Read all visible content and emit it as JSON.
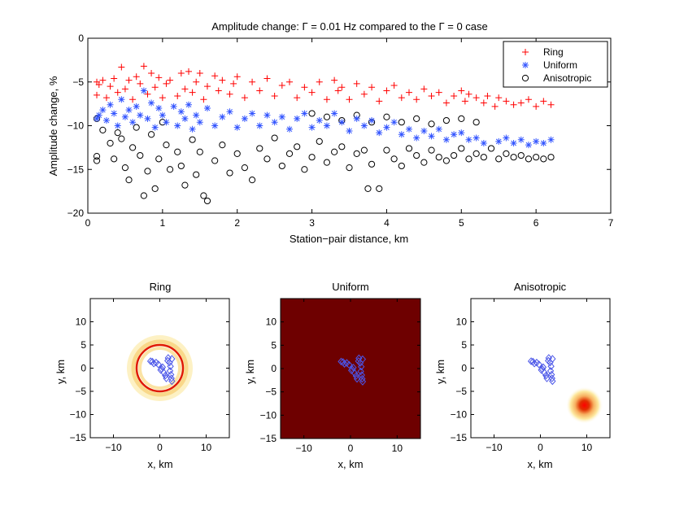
{
  "chart_data": [
    {
      "type": "scatter",
      "title": "Amplitude change: Γ = 0.01 Hz compared to the Γ = 0 case",
      "xlabel": "Station−pair distance, km",
      "ylabel": "Amplitude change, %",
      "xlim": [
        0,
        7
      ],
      "ylim": [
        -20,
        0
      ],
      "xticks": [
        "0",
        "1",
        "2",
        "3",
        "4",
        "5",
        "6",
        "7"
      ],
      "yticks": [
        "0",
        "−5",
        "−10",
        "−15",
        "−20"
      ],
      "legend": {
        "placement": "top-right",
        "entries": [
          "Ring",
          "Uniform",
          "Anisotropic"
        ]
      },
      "series": [
        {
          "name": "Ring",
          "marker": "+",
          "color": "#ff0000",
          "points": [
            [
              0.12,
              -5.0
            ],
            [
              0.12,
              -6.5
            ],
            [
              0.15,
              -5.3
            ],
            [
              0.2,
              -4.8
            ],
            [
              0.25,
              -6.8
            ],
            [
              0.3,
              -5.5
            ],
            [
              0.35,
              -4.6
            ],
            [
              0.4,
              -6.2
            ],
            [
              0.45,
              -3.3
            ],
            [
              0.5,
              -5.8
            ],
            [
              0.55,
              -4.8
            ],
            [
              0.6,
              -7.0
            ],
            [
              0.65,
              -4.4
            ],
            [
              0.7,
              -5.2
            ],
            [
              0.75,
              -3.2
            ],
            [
              0.8,
              -6.4
            ],
            [
              0.85,
              -4.0
            ],
            [
              0.9,
              -5.6
            ],
            [
              0.95,
              -4.5
            ],
            [
              1.0,
              -6.8
            ],
            [
              1.05,
              -5.2
            ],
            [
              1.1,
              -4.8
            ],
            [
              1.2,
              -6.6
            ],
            [
              1.25,
              -4.0
            ],
            [
              1.3,
              -5.8
            ],
            [
              1.35,
              -3.8
            ],
            [
              1.4,
              -6.2
            ],
            [
              1.45,
              -5.0
            ],
            [
              1.5,
              -4.0
            ],
            [
              1.55,
              -7.0
            ],
            [
              1.6,
              -5.5
            ],
            [
              1.7,
              -4.3
            ],
            [
              1.75,
              -6.0
            ],
            [
              1.8,
              -4.8
            ],
            [
              1.9,
              -6.4
            ],
            [
              1.95,
              -5.2
            ],
            [
              2.0,
              -4.4
            ],
            [
              2.1,
              -6.8
            ],
            [
              2.2,
              -5.0
            ],
            [
              2.3,
              -6.0
            ],
            [
              2.4,
              -4.6
            ],
            [
              2.5,
              -6.6
            ],
            [
              2.6,
              -5.4
            ],
            [
              2.7,
              -5.0
            ],
            [
              2.8,
              -6.8
            ],
            [
              2.9,
              -5.6
            ],
            [
              3.0,
              -6.2
            ],
            [
              3.1,
              -5.0
            ],
            [
              3.2,
              -7.0
            ],
            [
              3.3,
              -4.8
            ],
            [
              3.35,
              -6.0
            ],
            [
              3.4,
              -5.6
            ],
            [
              3.5,
              -7.0
            ],
            [
              3.6,
              -5.2
            ],
            [
              3.7,
              -6.4
            ],
            [
              3.8,
              -5.6
            ],
            [
              3.9,
              -7.2
            ],
            [
              4.0,
              -6.0
            ],
            [
              4.1,
              -5.4
            ],
            [
              4.2,
              -6.8
            ],
            [
              4.3,
              -6.2
            ],
            [
              4.4,
              -7.0
            ],
            [
              4.5,
              -5.8
            ],
            [
              4.6,
              -6.6
            ],
            [
              4.7,
              -6.2
            ],
            [
              4.8,
              -7.4
            ],
            [
              4.9,
              -6.6
            ],
            [
              5.0,
              -6.0
            ],
            [
              5.05,
              -7.2
            ],
            [
              5.1,
              -6.4
            ],
            [
              5.2,
              -6.8
            ],
            [
              5.3,
              -7.4
            ],
            [
              5.35,
              -6.6
            ],
            [
              5.45,
              -7.8
            ],
            [
              5.5,
              -6.8
            ],
            [
              5.6,
              -7.2
            ],
            [
              5.7,
              -7.6
            ],
            [
              5.8,
              -7.4
            ],
            [
              5.9,
              -7.0
            ],
            [
              6.0,
              -7.8
            ],
            [
              6.1,
              -7.2
            ],
            [
              6.2,
              -7.6
            ]
          ]
        },
        {
          "name": "Uniform",
          "marker": "*",
          "color": "#3355ff",
          "points": [
            [
              0.12,
              -9.2
            ],
            [
              0.15,
              -8.8
            ],
            [
              0.2,
              -8.2
            ],
            [
              0.25,
              -9.4
            ],
            [
              0.3,
              -7.6
            ],
            [
              0.35,
              -8.6
            ],
            [
              0.4,
              -10.0
            ],
            [
              0.45,
              -7.0
            ],
            [
              0.5,
              -9.0
            ],
            [
              0.55,
              -8.2
            ],
            [
              0.6,
              -9.6
            ],
            [
              0.65,
              -7.8
            ],
            [
              0.7,
              -8.8
            ],
            [
              0.75,
              -6.0
            ],
            [
              0.8,
              -9.2
            ],
            [
              0.85,
              -7.4
            ],
            [
              0.9,
              -10.2
            ],
            [
              0.95,
              -8.0
            ],
            [
              1.0,
              -8.8
            ],
            [
              1.05,
              -9.6
            ],
            [
              1.15,
              -7.8
            ],
            [
              1.2,
              -10.0
            ],
            [
              1.25,
              -8.4
            ],
            [
              1.3,
              -9.2
            ],
            [
              1.35,
              -7.6
            ],
            [
              1.4,
              -10.4
            ],
            [
              1.45,
              -8.8
            ],
            [
              1.5,
              -9.6
            ],
            [
              1.6,
              -8.0
            ],
            [
              1.7,
              -10.0
            ],
            [
              1.8,
              -9.0
            ],
            [
              1.9,
              -8.4
            ],
            [
              2.0,
              -10.2
            ],
            [
              2.1,
              -9.2
            ],
            [
              2.2,
              -8.6
            ],
            [
              2.3,
              -10.0
            ],
            [
              2.4,
              -8.8
            ],
            [
              2.5,
              -9.6
            ],
            [
              2.6,
              -9.0
            ],
            [
              2.7,
              -10.4
            ],
            [
              2.8,
              -9.2
            ],
            [
              2.9,
              -8.6
            ],
            [
              3.0,
              -10.2
            ],
            [
              3.1,
              -9.4
            ],
            [
              3.2,
              -10.0
            ],
            [
              3.3,
              -8.6
            ],
            [
              3.4,
              -9.6
            ],
            [
              3.5,
              -10.6
            ],
            [
              3.6,
              -9.2
            ],
            [
              3.7,
              -10.0
            ],
            [
              3.8,
              -9.4
            ],
            [
              3.9,
              -10.8
            ],
            [
              4.0,
              -10.2
            ],
            [
              4.1,
              -9.6
            ],
            [
              4.2,
              -11.0
            ],
            [
              4.3,
              -10.4
            ],
            [
              4.4,
              -11.4
            ],
            [
              4.5,
              -10.6
            ],
            [
              4.6,
              -11.2
            ],
            [
              4.7,
              -10.4
            ],
            [
              4.8,
              -11.6
            ],
            [
              4.9,
              -11.0
            ],
            [
              5.0,
              -10.8
            ],
            [
              5.1,
              -11.6
            ],
            [
              5.2,
              -11.4
            ],
            [
              5.3,
              -12.0
            ],
            [
              5.5,
              -11.8
            ],
            [
              5.6,
              -11.4
            ],
            [
              5.7,
              -12.0
            ],
            [
              5.8,
              -11.6
            ],
            [
              5.9,
              -12.2
            ],
            [
              6.0,
              -11.8
            ],
            [
              6.1,
              -12.0
            ],
            [
              6.2,
              -11.6
            ]
          ]
        },
        {
          "name": "Anisotropic",
          "marker": "o",
          "color": "#000000",
          "points": [
            [
              0.12,
              -9.2
            ],
            [
              0.12,
              -13.5
            ],
            [
              0.12,
              -14.0
            ],
            [
              0.2,
              -10.5
            ],
            [
              0.3,
              -12.0
            ],
            [
              0.35,
              -13.8
            ],
            [
              0.4,
              -10.8
            ],
            [
              0.45,
              -11.5
            ],
            [
              0.5,
              -14.8
            ],
            [
              0.55,
              -16.2
            ],
            [
              0.6,
              -12.5
            ],
            [
              0.65,
              -10.2
            ],
            [
              0.7,
              -13.4
            ],
            [
              0.75,
              -18.0
            ],
            [
              0.8,
              -15.2
            ],
            [
              0.85,
              -11.0
            ],
            [
              0.9,
              -17.2
            ],
            [
              0.95,
              -13.8
            ],
            [
              1.0,
              -9.6
            ],
            [
              1.05,
              -12.2
            ],
            [
              1.1,
              -15.0
            ],
            [
              1.2,
              -13.0
            ],
            [
              1.25,
              -14.6
            ],
            [
              1.3,
              -16.8
            ],
            [
              1.4,
              -11.6
            ],
            [
              1.45,
              -15.6
            ],
            [
              1.5,
              -13.0
            ],
            [
              1.55,
              -18.0
            ],
            [
              1.6,
              -18.6
            ],
            [
              1.7,
              -14.0
            ],
            [
              1.8,
              -12.2
            ],
            [
              1.9,
              -15.4
            ],
            [
              2.0,
              -13.2
            ],
            [
              2.1,
              -14.8
            ],
            [
              2.2,
              -16.2
            ],
            [
              2.3,
              -12.6
            ],
            [
              2.4,
              -13.8
            ],
            [
              2.5,
              -11.4
            ],
            [
              2.6,
              -14.6
            ],
            [
              2.7,
              -13.2
            ],
            [
              2.8,
              -12.4
            ],
            [
              2.9,
              -15.0
            ],
            [
              3.0,
              -13.6
            ],
            [
              3.1,
              -11.8
            ],
            [
              3.2,
              -14.2
            ],
            [
              3.3,
              -13.0
            ],
            [
              3.4,
              -12.4
            ],
            [
              3.5,
              -14.8
            ],
            [
              3.6,
              -13.2
            ],
            [
              3.7,
              -12.8
            ],
            [
              3.75,
              -17.2
            ],
            [
              3.8,
              -14.4
            ],
            [
              3.9,
              -17.2
            ],
            [
              4.0,
              -12.8
            ],
            [
              4.1,
              -13.8
            ],
            [
              4.2,
              -14.6
            ],
            [
              4.3,
              -12.6
            ],
            [
              4.4,
              -13.4
            ],
            [
              4.5,
              -14.2
            ],
            [
              4.6,
              -12.8
            ],
            [
              4.7,
              -13.6
            ],
            [
              4.8,
              -14.0
            ],
            [
              4.9,
              -13.4
            ],
            [
              5.0,
              -12.6
            ],
            [
              5.1,
              -13.8
            ],
            [
              5.2,
              -13.2
            ],
            [
              5.3,
              -13.6
            ],
            [
              5.4,
              -12.6
            ],
            [
              5.5,
              -13.8
            ],
            [
              5.6,
              -13.2
            ],
            [
              5.7,
              -13.6
            ],
            [
              5.8,
              -13.4
            ],
            [
              5.9,
              -13.8
            ],
            [
              6.0,
              -13.6
            ],
            [
              6.1,
              -13.8
            ],
            [
              6.2,
              -13.6
            ],
            [
              3.0,
              -8.6
            ],
            [
              3.2,
              -9.0
            ],
            [
              3.4,
              -9.4
            ],
            [
              3.6,
              -8.8
            ],
            [
              3.8,
              -9.6
            ],
            [
              4.0,
              -9.0
            ],
            [
              4.2,
              -9.6
            ],
            [
              4.4,
              -9.2
            ],
            [
              4.6,
              -9.8
            ],
            [
              4.8,
              -9.4
            ],
            [
              5.0,
              -9.2
            ],
            [
              5.2,
              -9.6
            ]
          ]
        }
      ]
    },
    {
      "type": "heatmap",
      "title": "Ring",
      "xlabel": "x, km",
      "ylabel": "y, km",
      "xlim": [
        -15,
        15
      ],
      "ylim": [
        -15,
        15
      ],
      "xticks": [
        "−10",
        "0",
        "10"
      ],
      "yticks": [
        "10",
        "5",
        "0",
        "−5",
        "−10",
        "−15"
      ],
      "source": {
        "shape": "ring",
        "center": [
          0,
          0
        ],
        "radius": 5
      }
    },
    {
      "type": "heatmap",
      "title": "Uniform",
      "xlabel": "x, km",
      "ylabel": "y, km",
      "xlim": [
        -15,
        15
      ],
      "ylim": [
        -15,
        15
      ],
      "xticks": [
        "−10",
        "0",
        "10"
      ],
      "yticks": [
        "10",
        "5",
        "0",
        "−5",
        "−10",
        "−15"
      ],
      "source": {
        "shape": "uniform",
        "color": "#6e0000"
      }
    },
    {
      "type": "heatmap",
      "title": "Anisotropic",
      "xlabel": "x, km",
      "ylabel": "y, km",
      "xlim": [
        -15,
        15
      ],
      "ylim": [
        -15,
        15
      ],
      "xticks": [
        "−10",
        "0",
        "10"
      ],
      "yticks": [
        "10",
        "5",
        "0",
        "−5",
        "−10",
        "−15"
      ],
      "source": {
        "shape": "spot",
        "center": [
          9.5,
          -8
        ],
        "radius": 4
      }
    }
  ],
  "stations": [
    [
      -2,
      1.5
    ],
    [
      -1.3,
      1.0
    ],
    [
      -0.8,
      1.2
    ],
    [
      -0.3,
      0.8
    ],
    [
      0.2,
      -0.4
    ],
    [
      0.6,
      0.2
    ],
    [
      0.9,
      -1.0
    ],
    [
      1.2,
      -1.6
    ],
    [
      1.4,
      -2.2
    ],
    [
      1.8,
      2.2
    ],
    [
      2.1,
      1.2
    ],
    [
      2.3,
      0.4
    ],
    [
      2.2,
      -0.6
    ],
    [
      2.4,
      -1.4
    ],
    [
      2.5,
      -2.2
    ],
    [
      2.6,
      -2.8
    ],
    [
      -1.6,
      1.4
    ],
    [
      0.4,
      -0.2
    ],
    [
      1.7,
      1.6
    ],
    [
      2.6,
      2.0
    ]
  ]
}
